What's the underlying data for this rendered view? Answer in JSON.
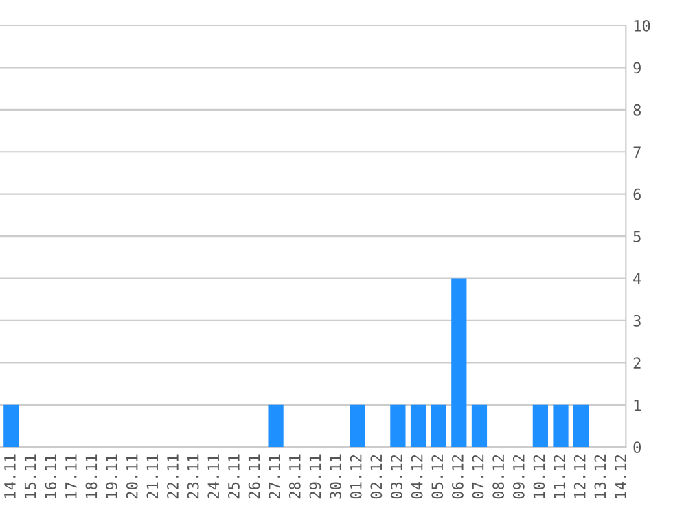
{
  "chart_data": {
    "type": "bar",
    "categories": [
      "14.11",
      "15.11",
      "16.11",
      "17.11",
      "18.11",
      "19.11",
      "20.11",
      "21.11",
      "22.11",
      "23.11",
      "24.11",
      "25.11",
      "26.11",
      "27.11",
      "28.11",
      "29.11",
      "30.11",
      "01.12",
      "02.12",
      "03.12",
      "04.12",
      "05.12",
      "06.12",
      "07.12",
      "08.12",
      "09.12",
      "10.12",
      "11.12",
      "12.12",
      "13.12",
      "14.12"
    ],
    "values": [
      1,
      0,
      0,
      0,
      0,
      0,
      0,
      0,
      0,
      0,
      0,
      0,
      0,
      1,
      0,
      0,
      0,
      1,
      0,
      1,
      1,
      1,
      4,
      1,
      0,
      0,
      1,
      1,
      1,
      0,
      0
    ],
    "color": "#1e90ff",
    "ylim": [
      0,
      10
    ],
    "yticks": [
      0,
      1,
      2,
      3,
      4,
      5,
      6,
      7,
      8,
      9,
      10
    ],
    "grid": "y",
    "legend": false
  }
}
